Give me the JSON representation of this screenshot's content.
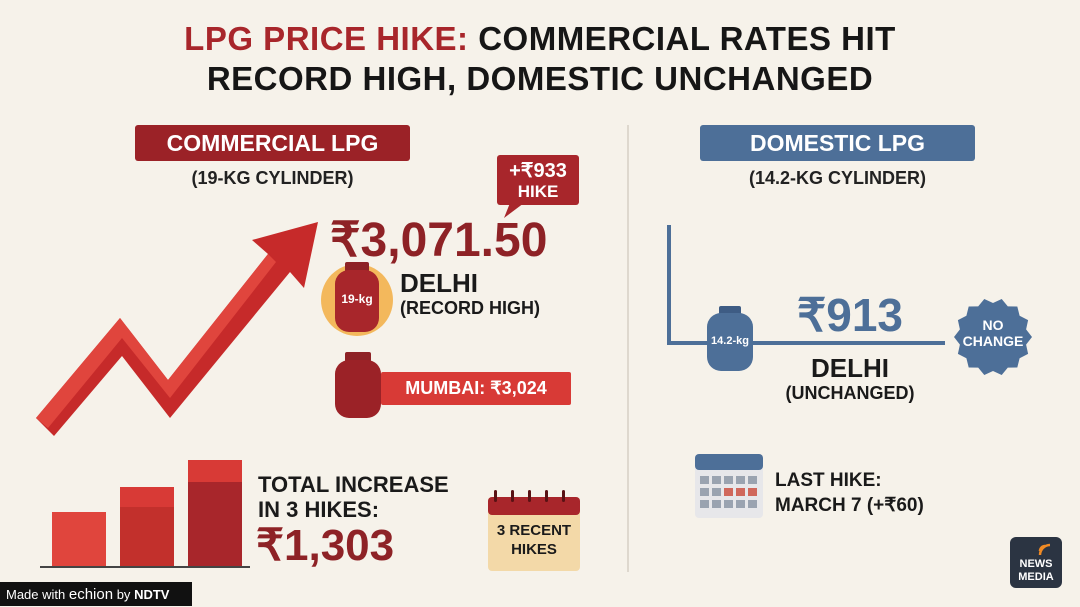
{
  "title": {
    "highlight": "LPG PRICE HIKE:",
    "line1_rest": "COMMERCIAL RATES HIT",
    "line2": "RECORD HIGH, DOMESTIC UNCHANGED"
  },
  "commercial": {
    "label": "COMMERCIAL LPG",
    "subtitle": "(19-KG CYLINDER)",
    "hike_amount": "+₹933",
    "hike_word": "HIKE",
    "price": "₹3,071.50",
    "cylinder_label": "19-kg",
    "city": "DELHI",
    "note": "(RECORD HIGH)",
    "mumbai": "MUMBAI: ₹3,024",
    "total_line1": "TOTAL INCREASE",
    "total_line2": "IN 3 HIKES:",
    "total_amount": "₹1,303",
    "calendar_line1": "3 RECENT",
    "calendar_line2": "HIKES"
  },
  "domestic": {
    "label": "DOMESTIC LPG",
    "subtitle": "(14.2-KG CYLINDER)",
    "cylinder_label": "14.2-kg",
    "price": "₹913",
    "badge_line1": "NO",
    "badge_line2": "CHANGE",
    "city": "DELHI",
    "note": "(UNCHANGED)",
    "last_hike_line1": "LAST HIKE:",
    "last_hike_line2": "MARCH 7 (+₹60)"
  },
  "footer": {
    "made_with": "Made with",
    "brand": "echion",
    "by": "by",
    "partner": "NDTV"
  },
  "logo": {
    "line1": "NEWS",
    "line2": "MEDIA"
  }
}
